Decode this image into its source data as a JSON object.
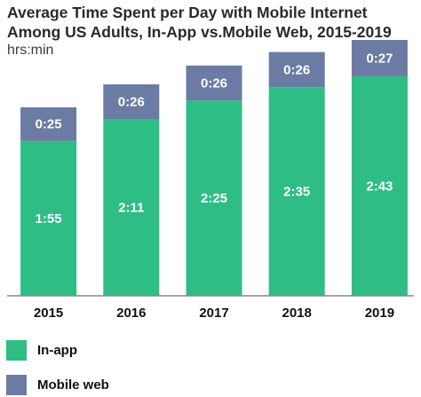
{
  "chart_data": {
    "type": "bar",
    "stacked": true,
    "title": "Average Time Spent per Day with Mobile Internet Among US Adults, In-App vs.Mobile Web, 2015-2019",
    "subtitle": "hrs:min",
    "categories": [
      "2015",
      "2016",
      "2017",
      "2018",
      "2019"
    ],
    "series": [
      {
        "name": "In-app",
        "color": "#2ebd85",
        "values": [
          115,
          131,
          145,
          155,
          163
        ],
        "labels": [
          "1:55",
          "2:11",
          "2:25",
          "2:35",
          "2:43"
        ]
      },
      {
        "name": "Mobile web",
        "color": "#6b7ba4",
        "values": [
          25,
          26,
          26,
          26,
          27
        ],
        "labels": [
          "0:25",
          "0:26",
          "0:26",
          "0:26",
          "0:27"
        ]
      }
    ],
    "ylim": [
      0,
      190
    ],
    "grid": false,
    "legend": "bottom-left"
  }
}
